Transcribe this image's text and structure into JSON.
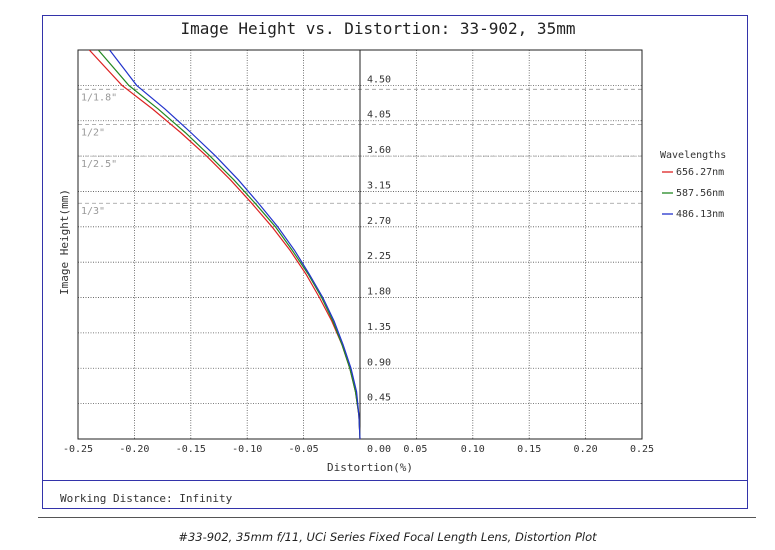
{
  "chart_data": {
    "type": "line",
    "title": "Image Height vs. Distortion: 33-902, 35mm",
    "xlabel": "Distortion(%)",
    "ylabel": "Image Height(mm)",
    "xlim": [
      -0.25,
      0.25
    ],
    "ylim": [
      0,
      4.95
    ],
    "x_ticks": [
      "-0.25",
      "-0.20",
      "-0.15",
      "-0.10",
      "-0.05",
      "0.00",
      "0.05",
      "0.10",
      "0.15",
      "0.20",
      "0.25"
    ],
    "x_tick_values": [
      -0.25,
      -0.2,
      -0.15,
      -0.1,
      -0.05,
      0,
      0.05,
      0.1,
      0.15,
      0.2,
      0.25
    ],
    "y_ticks": [
      "0.45",
      "0.90",
      "1.35",
      "1.80",
      "2.25",
      "2.70",
      "3.15",
      "3.60",
      "4.05",
      "4.50"
    ],
    "y_tick_values": [
      0.45,
      0.9,
      1.35,
      1.8,
      2.25,
      2.7,
      3.15,
      3.6,
      4.05,
      4.5
    ],
    "grid": true,
    "legend_title": "Wavelengths",
    "legend_position": "right",
    "sensor_lines": [
      {
        "label": "1/1.8\"",
        "y": 4.45
      },
      {
        "label": "1/2\"",
        "y": 4.0
      },
      {
        "label": "1/2.5\"",
        "y": 3.6
      },
      {
        "label": "1/3\"",
        "y": 3.0
      }
    ],
    "series": [
      {
        "name": "656.27nm",
        "color": "#dd2222",
        "x": [
          0,
          -0.001,
          -0.004,
          -0.009,
          -0.016,
          -0.025,
          -0.036,
          -0.048,
          -0.062,
          -0.078,
          -0.096,
          -0.115,
          -0.136,
          -0.159,
          -0.184,
          -0.211,
          -0.24
        ],
        "y": [
          0,
          0.3,
          0.6,
          0.9,
          1.2,
          1.5,
          1.8,
          2.1,
          2.4,
          2.7,
          3.0,
          3.3,
          3.6,
          3.9,
          4.2,
          4.5,
          4.95
        ]
      },
      {
        "name": "587.56nm",
        "color": "#228822",
        "x": [
          0,
          -0.001,
          -0.004,
          -0.009,
          -0.016,
          -0.024,
          -0.034,
          -0.046,
          -0.06,
          -0.075,
          -0.093,
          -0.112,
          -0.133,
          -0.155,
          -0.179,
          -0.205,
          -0.232
        ],
        "y": [
          0,
          0.3,
          0.6,
          0.9,
          1.2,
          1.5,
          1.8,
          2.1,
          2.4,
          2.7,
          3.0,
          3.3,
          3.6,
          3.9,
          4.2,
          4.5,
          4.95
        ]
      },
      {
        "name": "486.13nm",
        "color": "#2233cc",
        "x": [
          0,
          -0.001,
          -0.003,
          -0.008,
          -0.015,
          -0.023,
          -0.033,
          -0.045,
          -0.058,
          -0.073,
          -0.09,
          -0.108,
          -0.128,
          -0.15,
          -0.173,
          -0.198,
          -0.222
        ],
        "y": [
          0,
          0.3,
          0.6,
          0.9,
          1.2,
          1.5,
          1.8,
          2.1,
          2.4,
          2.7,
          3.0,
          3.3,
          3.6,
          3.9,
          4.2,
          4.5,
          4.95
        ]
      }
    ]
  },
  "footer": {
    "working_distance": "Working Distance: Infinity",
    "caption": "#33-902, 35mm f/11, UCi Series Fixed Focal Length Lens, Distortion Plot"
  }
}
